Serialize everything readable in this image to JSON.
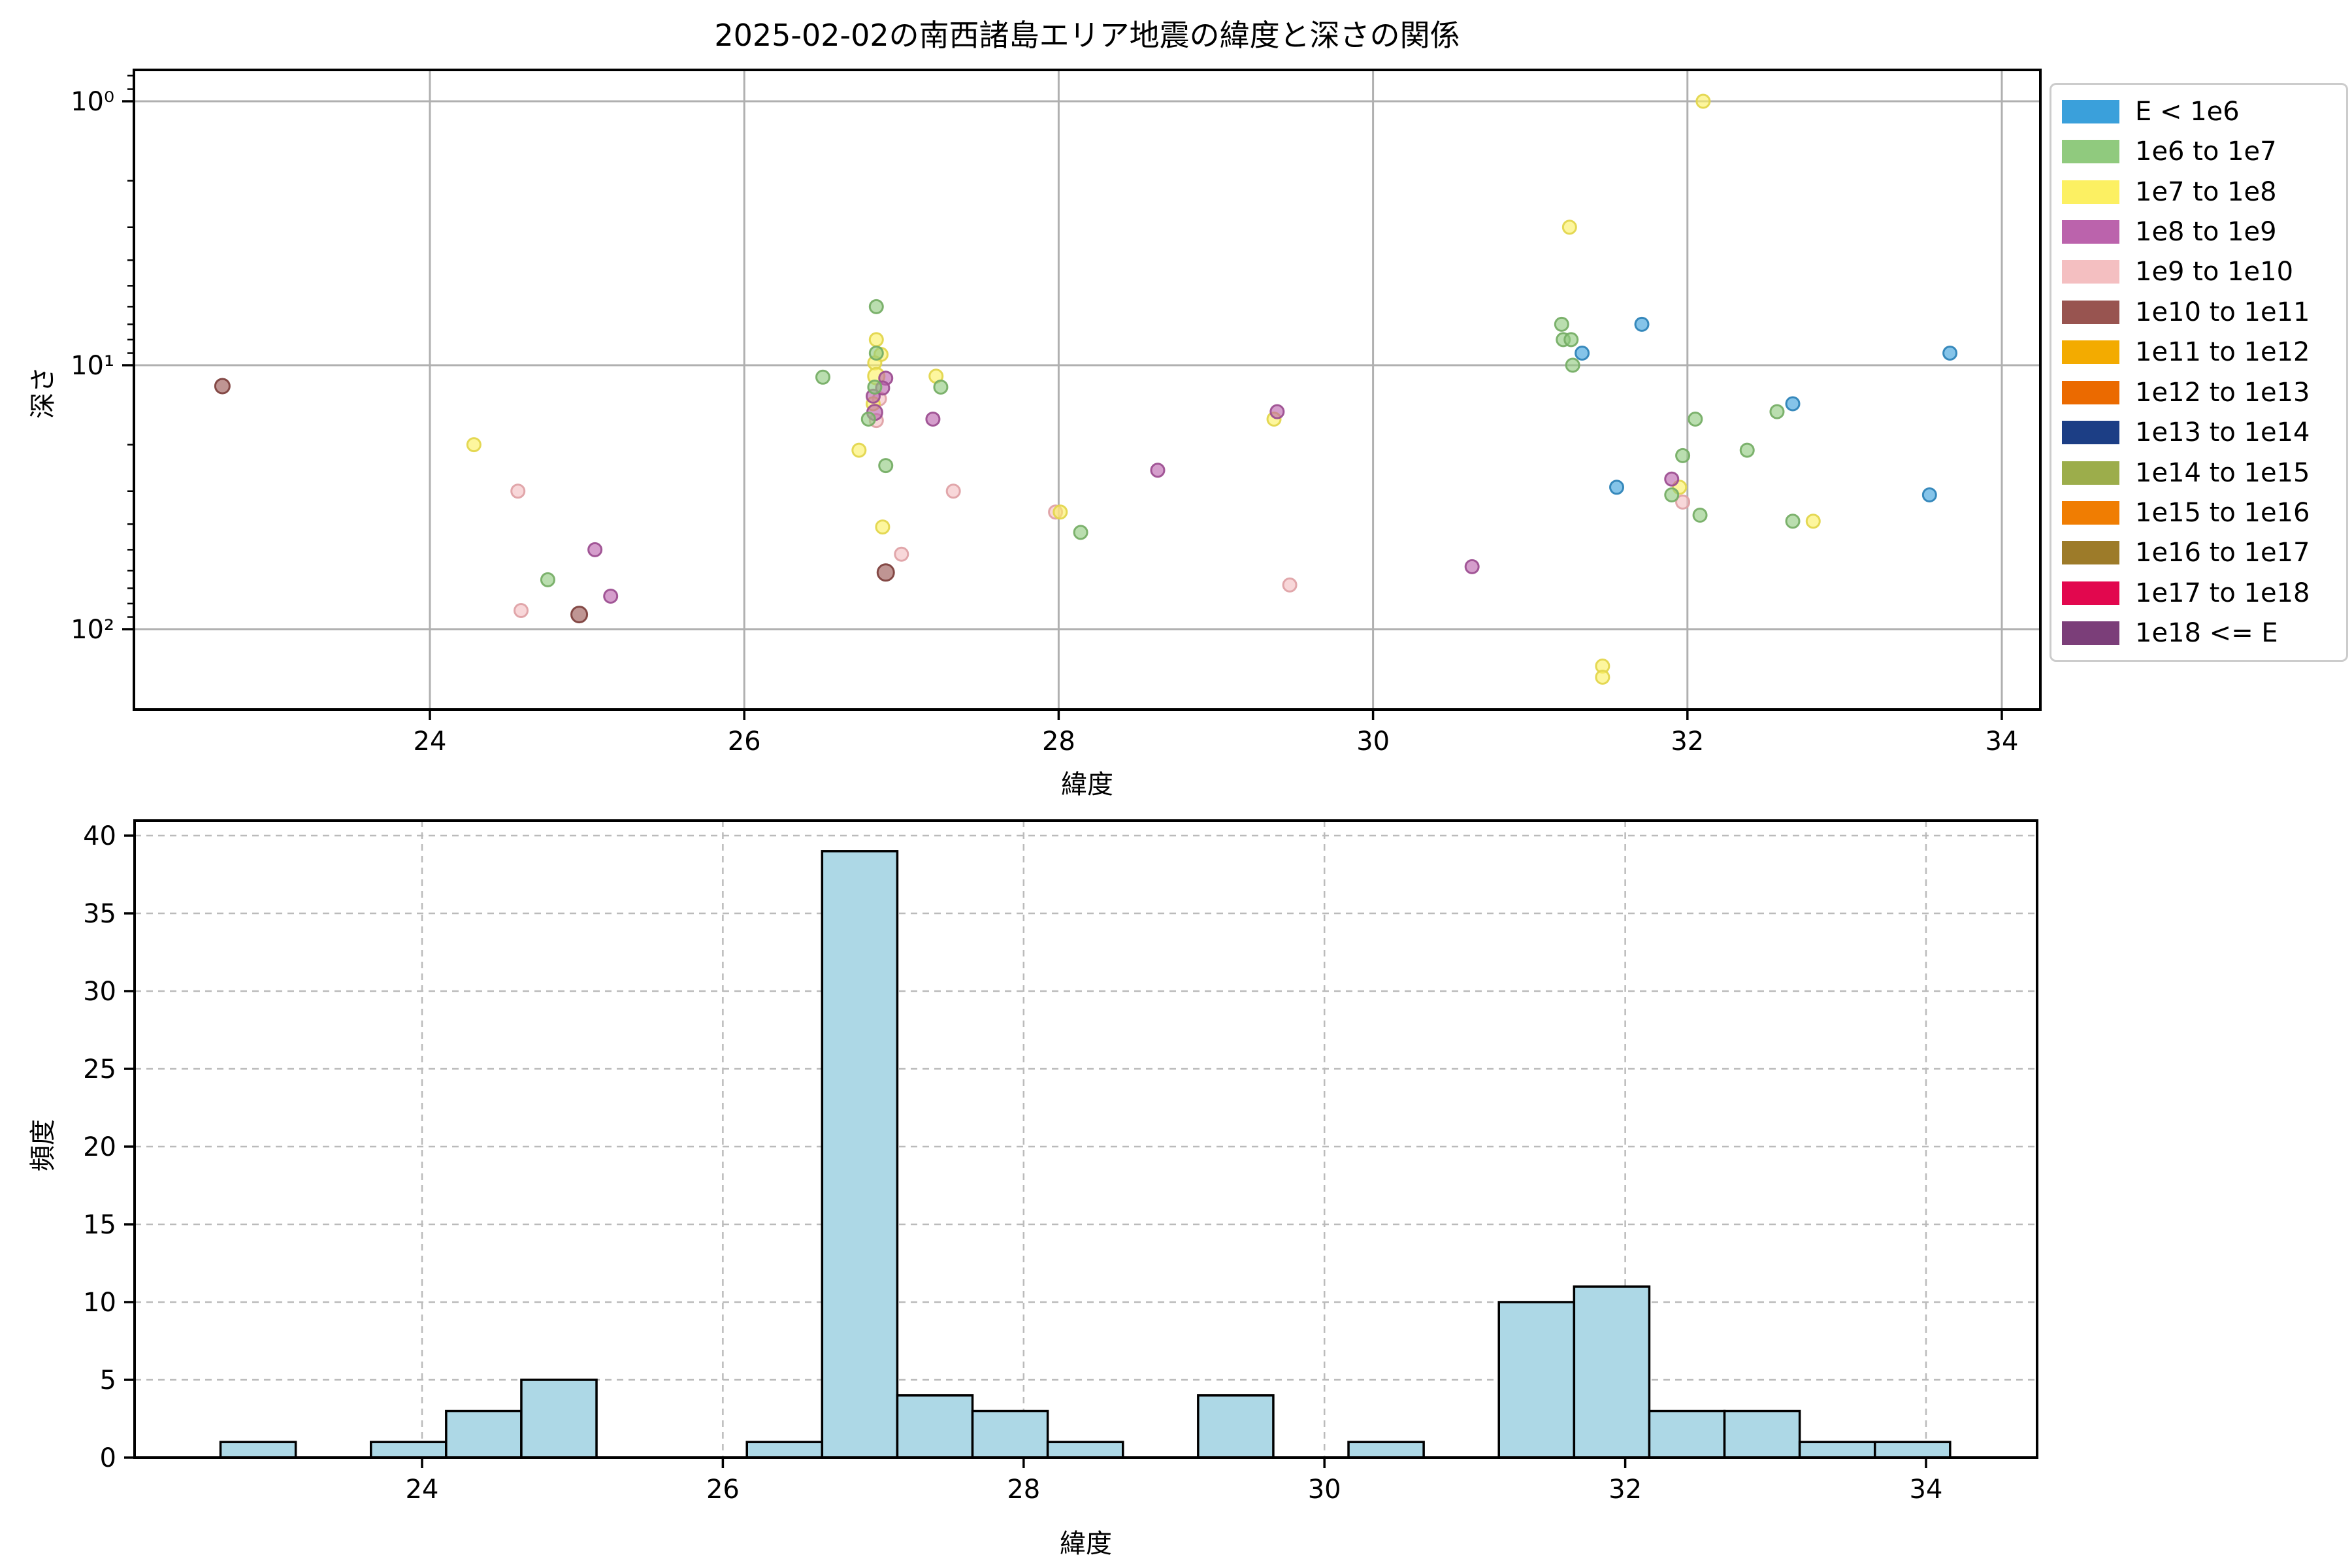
{
  "figure": {
    "title": "2025-02-02の南西諸島エリア地震の緯度と深さの関係"
  },
  "chart_data": [
    {
      "type": "scatter",
      "xlabel": "緯度",
      "ylabel": "深さ",
      "xlim": [
        22.12,
        34.22
      ],
      "ylim_depth": [
        0.76,
        201
      ],
      "yscale": "log-inverted",
      "grid": "solid-major",
      "xticks": [
        24,
        26,
        28,
        30,
        32,
        34
      ],
      "yticks": [
        {
          "value": 1,
          "label": "10⁰"
        },
        {
          "value": 10,
          "label": "10¹"
        },
        {
          "value": 100,
          "label": "10²"
        }
      ],
      "legend_position": "outside-right",
      "legend_entries": [
        {
          "label": "E < 1e6",
          "color": "#3AA0DB"
        },
        {
          "label": "1e6 to 1e7",
          "color": "#90CA7E"
        },
        {
          "label": "1e7 to 1e8",
          "color": "#FCF062"
        },
        {
          "label": "1e8 to 1e9",
          "color": "#BB63AC"
        },
        {
          "label": "1e9 to 1e10",
          "color": "#F4BFC1"
        },
        {
          "label": "1e10 to 1e11",
          "color": "#985450"
        },
        {
          "label": "1e11 to 1e12",
          "color": "#F3AB00"
        },
        {
          "label": "1e12 to 1e13",
          "color": "#EB6A00"
        },
        {
          "label": "1e13 to 1e14",
          "color": "#1C3E85"
        },
        {
          "label": "1e14 to 1e15",
          "color": "#9CAD4B"
        },
        {
          "label": "1e15 to 1e16",
          "color": "#F07D02"
        },
        {
          "label": "1e16 to 1e17",
          "color": "#9D7B29"
        },
        {
          "label": "1e17 to 1e18",
          "color": "#E2074E"
        },
        {
          "label": "1e18 <= E",
          "color": "#7B3E79"
        }
      ],
      "series": [
        {
          "name": "1e9 to 1e10",
          "color": "#F4BFC1",
          "edge": "#DFA2A6",
          "points": [
            [
              24.56,
              30
            ],
            [
              24.58,
              85
            ],
            [
              26.86,
              13.4
            ],
            [
              26.84,
              16.2
            ],
            [
              27.0,
              52
            ],
            [
              27.33,
              30
            ],
            [
              27.98,
              36
            ],
            [
              29.47,
              68
            ],
            [
              31.97,
              33
            ]
          ]
        },
        {
          "name": "1e10 to 1e11",
          "color": "#985450",
          "edge": "#7E413E",
          "points": [
            [
              22.68,
              12,
              11
            ],
            [
              24.95,
              88,
              12
            ],
            [
              26.9,
              61,
              12.5
            ]
          ]
        },
        {
          "name": "1e7 to 1e8",
          "color": "#FCF062",
          "edge": "#E3D64D",
          "points": [
            [
              24.28,
              20
            ],
            [
              26.73,
              21
            ],
            [
              26.84,
              8
            ],
            [
              26.87,
              9.1
            ],
            [
              26.83,
              9.8
            ],
            [
              26.84,
              11,
              12.5
            ],
            [
              26.82,
              14
            ],
            [
              26.88,
              41
            ],
            [
              27.22,
              11
            ],
            [
              28.01,
              36
            ],
            [
              29.37,
              16
            ],
            [
              31.25,
              3
            ],
            [
              31.46,
              138
            ],
            [
              31.46,
              152
            ],
            [
              31.95,
              29
            ],
            [
              32.1,
              1.0
            ],
            [
              32.8,
              39
            ]
          ]
        },
        {
          "name": "1e8 to 1e9",
          "color": "#BB63AC",
          "edge": "#9D4F91",
          "points": [
            [
              25.05,
              50
            ],
            [
              25.15,
              75
            ],
            [
              26.9,
              11.2
            ],
            [
              26.88,
              12.2
            ],
            [
              26.82,
              13.1
            ],
            [
              26.83,
              15.1,
              11.5
            ],
            [
              27.2,
              16
            ],
            [
              28.63,
              25
            ],
            [
              29.39,
              15
            ],
            [
              30.63,
              58
            ],
            [
              31.9,
              27
            ]
          ]
        },
        {
          "name": "1e6 to 1e7",
          "color": "#90CA7E",
          "edge": "#76AE66",
          "points": [
            [
              24.75,
              65
            ],
            [
              26.5,
              11.1
            ],
            [
              26.84,
              6
            ],
            [
              26.84,
              9
            ],
            [
              26.83,
              12.1
            ],
            [
              26.79,
              16
            ],
            [
              26.9,
              24
            ],
            [
              27.25,
              12.1
            ],
            [
              28.14,
              43
            ],
            [
              31.2,
              7
            ],
            [
              31.21,
              8
            ],
            [
              31.26,
              8
            ],
            [
              31.27,
              10
            ],
            [
              31.9,
              31
            ],
            [
              31.97,
              22
            ],
            [
              32.05,
              16
            ],
            [
              32.08,
              37
            ],
            [
              32.38,
              21
            ],
            [
              32.57,
              15
            ],
            [
              32.67,
              39
            ]
          ]
        },
        {
          "name": "E < 1e6",
          "color": "#3AA0DB",
          "edge": "#2E84B8",
          "points": [
            [
              31.33,
              9
            ],
            [
              31.55,
              29
            ],
            [
              31.71,
              7
            ],
            [
              32.67,
              14
            ],
            [
              33.54,
              31
            ],
            [
              33.67,
              9
            ]
          ]
        }
      ]
    },
    {
      "type": "histogram",
      "xlabel": "緯度",
      "ylabel": "頻度",
      "xlim": [
        22.09,
        34.73
      ],
      "ylim": [
        0,
        40.95
      ],
      "grid": "dashed",
      "xticks": [
        24,
        26,
        28,
        30,
        32,
        34
      ],
      "yticks": [
        0,
        5,
        10,
        15,
        20,
        25,
        30,
        35,
        40
      ],
      "bar_color": "#ADD8E6",
      "bar_edge": "#000000",
      "bin_start": 22.66,
      "bin_width": 0.5,
      "counts": [
        1,
        0,
        1,
        3,
        5,
        0,
        0,
        1,
        39,
        4,
        3,
        1,
        0,
        4,
        0,
        1,
        0,
        10,
        11,
        3,
        3,
        1,
        1
      ]
    }
  ]
}
